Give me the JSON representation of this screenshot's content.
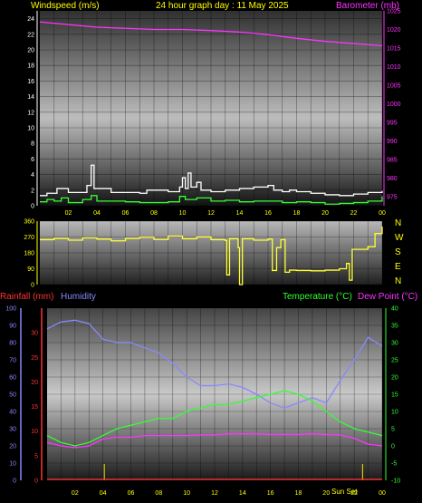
{
  "header": {
    "left_label": "Windspeed (m/s)",
    "title": "24 hour graph day : 11 May 2025",
    "right_label": "Barometer (mb)"
  },
  "colors": {
    "background": "#000000",
    "title": "#ffff00",
    "wind_axis_text": "#ffffff",
    "barometer": "#ff33ff",
    "wind_speed": "#ffffff",
    "wind_gust": "#33ff33",
    "wind_direction": "#ffff33",
    "rainfall": "#ff3333",
    "humidity": "#8888ff",
    "temperature": "#33ff33",
    "dew_point": "#ff33ff",
    "rain_bar": "#cccc00"
  },
  "compass": [
    "N",
    "W",
    "S",
    "E",
    "N"
  ],
  "bottom_labels": {
    "rainfall": "Rainfall (mm)",
    "humidity": "Humidity",
    "temperature": "Temperature (°C)",
    "dew_point": "Dew Point (°C)",
    "sun_marker": "Sun Set"
  },
  "chart_data": [
    {
      "type": "line",
      "name": "wind-barometer",
      "x_ticks": [
        "02",
        "04",
        "06",
        "08",
        "10",
        "12",
        "14",
        "16",
        "18",
        "20",
        "22",
        "00"
      ],
      "y_left_ticks": [
        0,
        2,
        4,
        6,
        8,
        10,
        12,
        14,
        16,
        18,
        20,
        22,
        24
      ],
      "y_left_range": [
        0,
        25
      ],
      "y_right_ticks": [
        975,
        980,
        985,
        990,
        995,
        1000,
        1005,
        1010,
        1015,
        1020,
        1025
      ],
      "y_right_range": [
        972.5,
        1025
      ],
      "series": [
        {
          "key": "barometer",
          "axis": "right",
          "points": [
            [
              0,
              1022
            ],
            [
              2,
              1021.3
            ],
            [
              4,
              1020.6
            ],
            [
              6,
              1020.3
            ],
            [
              8,
              1020.0
            ],
            [
              10,
              1020.0
            ],
            [
              12,
              1019.7
            ],
            [
              14,
              1019.3
            ],
            [
              16,
              1018.6
            ],
            [
              18,
              1017.6
            ],
            [
              20,
              1016.8
            ],
            [
              22,
              1016.2
            ],
            [
              24,
              1015.6
            ]
          ]
        },
        {
          "key": "wind_speed",
          "axis": "left",
          "points": [
            [
              0,
              1.3
            ],
            [
              0.5,
              1.6
            ],
            [
              1,
              1.6
            ],
            [
              1.2,
              2.2
            ],
            [
              1.8,
              2.2
            ],
            [
              2,
              1.7
            ],
            [
              3,
              1.7
            ],
            [
              3.3,
              2.6
            ],
            [
              3.5,
              2.6
            ],
            [
              3.6,
              5.2
            ],
            [
              3.75,
              5.2
            ],
            [
              3.8,
              2.2
            ],
            [
              4.5,
              2.2
            ],
            [
              5,
              1.7
            ],
            [
              7,
              1.6
            ],
            [
              7.5,
              2.0
            ],
            [
              9,
              1.8
            ],
            [
              9.8,
              2.4
            ],
            [
              10,
              3.6
            ],
            [
              10.2,
              2.2
            ],
            [
              10.4,
              4.2
            ],
            [
              10.6,
              2.4
            ],
            [
              11,
              3.0
            ],
            [
              11.3,
              2.0
            ],
            [
              12,
              1.8
            ],
            [
              13,
              2.0
            ],
            [
              14,
              2.2
            ],
            [
              15,
              2.4
            ],
            [
              15.5,
              2.4
            ],
            [
              16,
              2.6
            ],
            [
              16.4,
              2.0
            ],
            [
              17,
              1.8
            ],
            [
              17.5,
              2.0
            ],
            [
              18,
              1.8
            ],
            [
              19,
              1.6
            ],
            [
              20,
              1.4
            ],
            [
              21,
              1.3
            ],
            [
              22,
              1.5
            ],
            [
              23,
              1.7
            ],
            [
              24,
              1.9
            ]
          ]
        },
        {
          "key": "wind_gust",
          "axis": "left",
          "points": [
            [
              0,
              0.5
            ],
            [
              0.5,
              0.8
            ],
            [
              1,
              0.6
            ],
            [
              1.5,
              1.0
            ],
            [
              2,
              0.4
            ],
            [
              3,
              0.8
            ],
            [
              3.6,
              1.3
            ],
            [
              4,
              0.6
            ],
            [
              5,
              0.6
            ],
            [
              6,
              0.5
            ],
            [
              7,
              0.4
            ],
            [
              8,
              0.4
            ],
            [
              9,
              0.5
            ],
            [
              9.8,
              1.2
            ],
            [
              10.2,
              0.8
            ],
            [
              11,
              1.0
            ],
            [
              12,
              0.6
            ],
            [
              13,
              0.7
            ],
            [
              14,
              0.5
            ],
            [
              15,
              0.6
            ],
            [
              16,
              0.6
            ],
            [
              17,
              0.4
            ],
            [
              18,
              0.5
            ],
            [
              19,
              0.4
            ],
            [
              20,
              0.2
            ],
            [
              21,
              0.3
            ],
            [
              22,
              0.4
            ],
            [
              23,
              0.6
            ],
            [
              24,
              1.2
            ]
          ]
        }
      ]
    },
    {
      "type": "line",
      "name": "wind-direction",
      "y_ticks": [
        0,
        90,
        180,
        270,
        360
      ],
      "y_range": [
        0,
        360
      ],
      "series": [
        {
          "key": "wind_direction",
          "points": [
            [
              0,
              255
            ],
            [
              1,
              262
            ],
            [
              2,
              252
            ],
            [
              3,
              265
            ],
            [
              4,
              258
            ],
            [
              5,
              248
            ],
            [
              6,
              262
            ],
            [
              7,
              268
            ],
            [
              8,
              256
            ],
            [
              9,
              275
            ],
            [
              10,
              260
            ],
            [
              11,
              270
            ],
            [
              12,
              255
            ],
            [
              13,
              250
            ],
            [
              13.1,
              55
            ],
            [
              13.3,
              260
            ],
            [
              13.9,
              210
            ],
            [
              14.0,
              0
            ],
            [
              14.2,
              260
            ],
            [
              15,
              252
            ],
            [
              16,
              258
            ],
            [
              16.3,
              80
            ],
            [
              16.6,
              210
            ],
            [
              16.9,
              255
            ],
            [
              17.2,
              70
            ],
            [
              17.5,
              82
            ],
            [
              18,
              80
            ],
            [
              19,
              78
            ],
            [
              20,
              82
            ],
            [
              21,
              90
            ],
            [
              21.5,
              120
            ],
            [
              21.7,
              25
            ],
            [
              21.9,
              200
            ],
            [
              23,
              215
            ],
            [
              23.5,
              290
            ],
            [
              24,
              330
            ]
          ]
        }
      ]
    },
    {
      "type": "line",
      "name": "rain-humidity-temperature",
      "x_ticks": [
        "02",
        "04",
        "06",
        "08",
        "10",
        "12",
        "14",
        "16",
        "18",
        "20",
        "22",
        "00"
      ],
      "y_humidity_ticks": [
        0,
        10,
        20,
        30,
        40,
        50,
        60,
        70,
        80,
        90,
        100
      ],
      "y_rain_ticks": [
        0,
        5,
        10,
        15,
        20,
        25,
        30
      ],
      "y_temp_ticks": [
        -10,
        -5,
        0,
        5,
        10,
        15,
        20,
        25,
        30,
        35,
        40
      ],
      "y_temp_range": [
        -10,
        40
      ],
      "series": [
        {
          "key": "humidity",
          "points": [
            [
              0,
              88
            ],
            [
              1,
              92
            ],
            [
              2,
              93
            ],
            [
              3,
              91
            ],
            [
              4,
              82
            ],
            [
              5,
              80
            ],
            [
              6,
              80
            ],
            [
              7,
              77
            ],
            [
              8,
              74
            ],
            [
              9,
              68
            ],
            [
              10,
              60
            ],
            [
              11,
              55
            ],
            [
              12,
              55
            ],
            [
              13,
              56
            ],
            [
              14,
              54
            ],
            [
              15,
              50
            ],
            [
              16,
              45
            ],
            [
              17,
              42
            ],
            [
              18,
              45
            ],
            [
              19,
              48
            ],
            [
              20,
              45
            ],
            [
              21,
              58
            ],
            [
              22,
              70
            ],
            [
              23,
              83
            ],
            [
              24,
              78
            ]
          ]
        },
        {
          "key": "temperature",
          "points": [
            [
              0,
              3
            ],
            [
              1,
              1
            ],
            [
              2,
              0
            ],
            [
              3,
              1
            ],
            [
              4,
              3
            ],
            [
              5,
              5
            ],
            [
              6,
              6
            ],
            [
              7,
              7
            ],
            [
              8,
              8
            ],
            [
              9,
              8
            ],
            [
              10,
              10
            ],
            [
              11,
              11
            ],
            [
              12,
              12
            ],
            [
              13,
              12
            ],
            [
              14,
              13
            ],
            [
              15,
              14
            ],
            [
              16,
              15
            ],
            [
              17,
              16
            ],
            [
              18,
              15
            ],
            [
              19,
              13
            ],
            [
              20,
              10
            ],
            [
              21,
              7
            ],
            [
              22,
              5
            ],
            [
              23,
              4
            ],
            [
              24,
              3
            ]
          ]
        },
        {
          "key": "dew_point",
          "points": [
            [
              0,
              1
            ],
            [
              1,
              0
            ],
            [
              2,
              -0.5
            ],
            [
              3,
              0
            ],
            [
              4,
              2
            ],
            [
              5,
              2.5
            ],
            [
              6,
              2.5
            ],
            [
              7,
              3
            ],
            [
              8,
              3
            ],
            [
              9,
              3
            ],
            [
              10,
              3
            ],
            [
              11,
              3.2
            ],
            [
              12,
              3.2
            ],
            [
              13,
              3.5
            ],
            [
              14,
              3.5
            ],
            [
              15,
              3.5
            ],
            [
              16,
              3.3
            ],
            [
              17,
              3.3
            ],
            [
              18,
              3.3
            ],
            [
              19,
              3.5
            ],
            [
              20,
              3.3
            ],
            [
              21,
              3.2
            ],
            [
              22,
              2.2
            ],
            [
              23,
              0.5
            ],
            [
              24,
              0
            ]
          ]
        },
        {
          "key": "rainfall",
          "points": [
            [
              0,
              0.2
            ],
            [
              24,
              0.2
            ]
          ]
        }
      ],
      "rain_marks_hours": [
        4.1,
        22.6
      ]
    }
  ]
}
